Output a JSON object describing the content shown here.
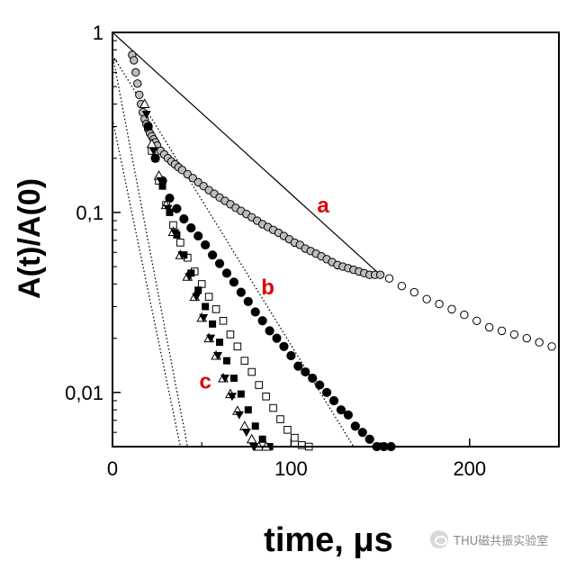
{
  "chart_data": {
    "type": "scatter",
    "title": "",
    "xlabel": "time, μs",
    "ylabel": "A(t)/A(0)",
    "xlim": [
      0,
      250
    ],
    "ylim": [
      0.005,
      1
    ],
    "y_scale": "log",
    "x_ticks": [
      0,
      100,
      200
    ],
    "x_tick_labels": [
      "0",
      "100",
      "200"
    ],
    "y_ticks": [
      1,
      0.1,
      0.01
    ],
    "y_tick_labels": [
      "1",
      "0,1",
      "0,01"
    ],
    "grid": false,
    "label_color": "#e00000",
    "series": [
      {
        "name": "a",
        "marker": "open-circle-shaded",
        "x": [
          11,
          12,
          13,
          14,
          15,
          16,
          17,
          18,
          19,
          20,
          21,
          22,
          23,
          24,
          25,
          27,
          29,
          31,
          33,
          35,
          37,
          39,
          42,
          45,
          48,
          51,
          54,
          57,
          60,
          63,
          66,
          69,
          72,
          75,
          78,
          81,
          84,
          87,
          90,
          93,
          96,
          99,
          102,
          105,
          108,
          111,
          114,
          117,
          120,
          123,
          126,
          129,
          132,
          135,
          138,
          141,
          144,
          147,
          150
        ],
        "y": [
          0.75,
          0.7,
          0.6,
          0.52,
          0.45,
          0.4,
          0.36,
          0.33,
          0.31,
          0.29,
          0.275,
          0.265,
          0.255,
          0.245,
          0.235,
          0.22,
          0.21,
          0.2,
          0.192,
          0.185,
          0.178,
          0.172,
          0.163,
          0.155,
          0.147,
          0.14,
          0.133,
          0.127,
          0.121,
          0.116,
          0.111,
          0.106,
          0.102,
          0.098,
          0.094,
          0.09,
          0.086,
          0.083,
          0.08,
          0.077,
          0.074,
          0.071,
          0.068,
          0.066,
          0.063,
          0.061,
          0.059,
          0.057,
          0.055,
          0.053,
          0.051,
          0.05,
          0.049,
          0.048,
          0.047,
          0.046,
          0.045,
          0.045,
          0.045
        ]
      },
      {
        "name": "",
        "marker": "open-circle",
        "x": [
          155,
          162,
          169,
          176,
          183,
          190,
          197,
          204,
          211,
          218,
          225,
          232,
          239,
          246
        ],
        "y": [
          0.043,
          0.039,
          0.036,
          0.033,
          0.031,
          0.029,
          0.027,
          0.025,
          0.023,
          0.022,
          0.021,
          0.02,
          0.019,
          0.018
        ]
      },
      {
        "name": "b",
        "marker": "filled-circle",
        "x": [
          20,
          24,
          28,
          32,
          36,
          40,
          44,
          48,
          52,
          56,
          60,
          64,
          68,
          72,
          76,
          80,
          84,
          88,
          92,
          96,
          100,
          104,
          108,
          112,
          116,
          120,
          124,
          128,
          132,
          136,
          140,
          144,
          148,
          152,
          156
        ],
        "y": [
          0.3,
          0.2,
          0.15,
          0.12,
          0.105,
          0.092,
          0.082,
          0.074,
          0.066,
          0.058,
          0.052,
          0.046,
          0.041,
          0.036,
          0.032,
          0.028,
          0.025,
          0.022,
          0.02,
          0.018,
          0.016,
          0.014,
          0.013,
          0.012,
          0.011,
          0.01,
          0.009,
          0.008,
          0.0075,
          0.0065,
          0.006,
          0.0055,
          0.005,
          0.005,
          0.005
        ]
      },
      {
        "name": "",
        "marker": "open-square",
        "x": [
          22,
          26,
          30,
          34,
          38,
          42,
          46,
          50,
          54,
          58,
          62,
          66,
          70,
          74,
          78,
          82,
          86,
          90,
          94,
          98,
          102,
          106,
          110
        ],
        "y": [
          0.22,
          0.15,
          0.11,
          0.085,
          0.068,
          0.056,
          0.047,
          0.04,
          0.034,
          0.029,
          0.025,
          0.021,
          0.018,
          0.015,
          0.013,
          0.011,
          0.0095,
          0.0082,
          0.0071,
          0.0062,
          0.0056,
          0.0051,
          0.005
        ]
      },
      {
        "name": "",
        "marker": "filled-square",
        "x": [
          20,
          24,
          28,
          32,
          36,
          40,
          44,
          48,
          52,
          56,
          60,
          64,
          68,
          72,
          76,
          80,
          84,
          88
        ],
        "y": [
          0.3,
          0.2,
          0.14,
          0.1,
          0.075,
          0.058,
          0.046,
          0.037,
          0.03,
          0.024,
          0.019,
          0.015,
          0.012,
          0.0098,
          0.008,
          0.0065,
          0.0055,
          0.005
        ]
      },
      {
        "name": "c",
        "marker": "open-triangle",
        "x": [
          18,
          22,
          26,
          30,
          34,
          38,
          42,
          46,
          50,
          54,
          58,
          62,
          66,
          70,
          74,
          78,
          82,
          86
        ],
        "y": [
          0.4,
          0.24,
          0.16,
          0.11,
          0.078,
          0.058,
          0.044,
          0.034,
          0.026,
          0.02,
          0.016,
          0.012,
          0.0098,
          0.0079,
          0.0065,
          0.0055,
          0.005,
          0.005
        ]
      },
      {
        "name": "",
        "marker": "filled-triangle-down",
        "x": [
          19,
          23,
          27,
          31,
          35,
          39,
          43,
          47,
          51,
          55,
          59,
          63,
          67,
          71,
          75,
          79
        ],
        "y": [
          0.35,
          0.22,
          0.15,
          0.105,
          0.077,
          0.058,
          0.044,
          0.034,
          0.026,
          0.02,
          0.016,
          0.012,
          0.0095,
          0.0075,
          0.006,
          0.005
        ]
      }
    ],
    "fit_lines": [
      {
        "style": "solid",
        "x": [
          0,
          150
        ],
        "y": [
          1.0,
          0.045
        ]
      },
      {
        "style": "dotted",
        "x": [
          0,
          135
        ],
        "y": [
          0.75,
          0.005
        ]
      },
      {
        "style": "dotted",
        "x": [
          0,
          42
        ],
        "y": [
          0.75,
          0.005
        ]
      },
      {
        "style": "dotted",
        "x": [
          0,
          38
        ],
        "y": [
          0.33,
          0.005
        ]
      }
    ],
    "annotations": [
      {
        "text": "a",
        "x": 118,
        "y": 0.1
      },
      {
        "text": "b",
        "x": 87,
        "y": 0.035
      },
      {
        "text": "c",
        "x": 52,
        "y": 0.0105
      }
    ]
  },
  "watermark": {
    "text": "THU磁共振实验室"
  }
}
